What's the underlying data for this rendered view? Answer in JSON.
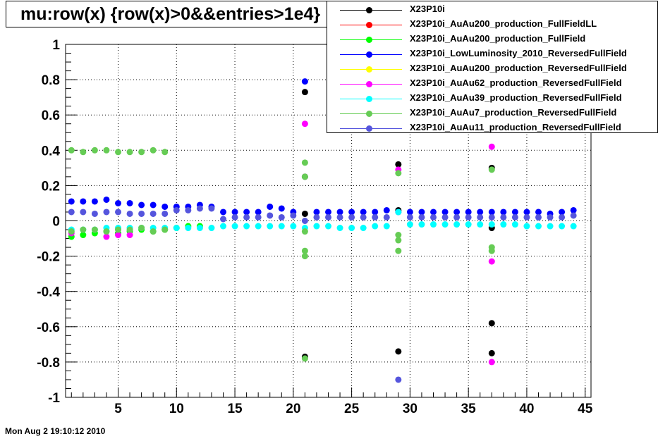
{
  "title": "mu:row(x)  {row(x)>0&&entries>1e4}",
  "timestamp": "Mon Aug  2 19:10:12 2010",
  "chart_data": {
    "type": "scatter",
    "xlim": [
      0.5,
      45.5
    ],
    "ylim": [
      -1,
      1
    ],
    "x_ticks": [
      "5",
      "10",
      "15",
      "20",
      "25",
      "30",
      "35",
      "40",
      "45"
    ],
    "y_ticks": [
      "1",
      "0.8",
      "0.6",
      "0.4",
      "0.2",
      "0",
      "-0.2",
      "-0.4",
      "-0.6",
      "-0.8",
      "-1"
    ],
    "grid": true,
    "legend_position": "top-right",
    "series": [
      {
        "name": "X23P10i",
        "color": "#000000",
        "points": [
          [
            21,
            0.73
          ],
          [
            21,
            0.25
          ],
          [
            21,
            0.04
          ],
          [
            21,
            -0.77
          ],
          [
            29,
            0.32
          ],
          [
            29,
            0.06
          ],
          [
            29,
            -0.74
          ],
          [
            37,
            0.3
          ],
          [
            37,
            -0.04
          ],
          [
            37,
            -0.58
          ],
          [
            37,
            -0.75
          ]
        ]
      },
      {
        "name": "X23P10i_AuAu200_production_FullFieldLL",
        "color": "#ff0000",
        "points": []
      },
      {
        "name": "X23P10i_AuAu200_production_FullField",
        "color": "#00ff00",
        "points": [
          [
            1,
            -0.09
          ],
          [
            2,
            -0.08
          ],
          [
            3,
            -0.07
          ],
          [
            4,
            -0.06
          ],
          [
            5,
            -0.07
          ],
          [
            6,
            -0.06
          ],
          [
            7,
            -0.05
          ],
          [
            8,
            -0.06
          ],
          [
            9,
            -0.05
          ],
          [
            10,
            -0.04
          ],
          [
            11,
            -0.03
          ],
          [
            12,
            -0.03
          ]
        ]
      },
      {
        "name": "X23P10i_LowLuminosity_2010_ReversedFullField",
        "color": "#0000ff",
        "points": [
          [
            1,
            0.11
          ],
          [
            2,
            0.11
          ],
          [
            3,
            0.11
          ],
          [
            4,
            0.12
          ],
          [
            5,
            0.1
          ],
          [
            6,
            0.1
          ],
          [
            7,
            0.09
          ],
          [
            8,
            0.09
          ],
          [
            9,
            0.08
          ],
          [
            10,
            0.08
          ],
          [
            11,
            0.08
          ],
          [
            12,
            0.09
          ],
          [
            13,
            0.08
          ],
          [
            14,
            0.05
          ],
          [
            15,
            0.05
          ],
          [
            16,
            0.05
          ],
          [
            17,
            0.05
          ],
          [
            18,
            0.08
          ],
          [
            19,
            0.07
          ],
          [
            20,
            0.05
          ],
          [
            21,
            0.79
          ],
          [
            22,
            0.05
          ],
          [
            23,
            0.05
          ],
          [
            24,
            0.05
          ],
          [
            25,
            0.05
          ],
          [
            26,
            0.05
          ],
          [
            27,
            0.05
          ],
          [
            28,
            0.06
          ],
          [
            29,
            0.05
          ],
          [
            30,
            0.05
          ],
          [
            31,
            0.05
          ],
          [
            32,
            0.05
          ],
          [
            33,
            0.05
          ],
          [
            34,
            0.05
          ],
          [
            35,
            0.05
          ],
          [
            36,
            0.05
          ],
          [
            37,
            0.05
          ],
          [
            38,
            0.05
          ],
          [
            39,
            0.05
          ],
          [
            40,
            0.05
          ],
          [
            41,
            0.05
          ],
          [
            42,
            0.04
          ],
          [
            43,
            0.05
          ],
          [
            44,
            0.06
          ]
        ]
      },
      {
        "name": "X23P10i_AuAu200_production_ReversedFullField",
        "color": "#ffff00",
        "points": []
      },
      {
        "name": "X23P10i_AuAu62_production_ReversedFullField",
        "color": "#ff00ff",
        "points": [
          [
            1,
            -0.07
          ],
          [
            4,
            -0.09
          ],
          [
            5,
            -0.08
          ],
          [
            6,
            -0.08
          ],
          [
            21,
            0.55
          ],
          [
            29,
            0.29
          ],
          [
            37,
            0.42
          ],
          [
            37,
            -0.23
          ],
          [
            37,
            -0.8
          ]
        ]
      },
      {
        "name": "X23P10i_AuAu39_production_ReversedFullField",
        "color": "#00ffff",
        "points": [
          [
            1,
            -0.05
          ],
          [
            2,
            -0.05
          ],
          [
            3,
            -0.05
          ],
          [
            4,
            -0.04
          ],
          [
            5,
            -0.04
          ],
          [
            6,
            -0.04
          ],
          [
            7,
            -0.04
          ],
          [
            8,
            -0.04
          ],
          [
            9,
            -0.04
          ],
          [
            10,
            -0.04
          ],
          [
            11,
            -0.04
          ],
          [
            12,
            -0.04
          ],
          [
            13,
            -0.04
          ],
          [
            14,
            -0.03
          ],
          [
            15,
            -0.03
          ],
          [
            16,
            -0.03
          ],
          [
            17,
            -0.03
          ],
          [
            18,
            -0.03
          ],
          [
            19,
            -0.03
          ],
          [
            20,
            -0.03
          ],
          [
            21,
            -0.04
          ],
          [
            22,
            -0.03
          ],
          [
            23,
            -0.03
          ],
          [
            24,
            -0.04
          ],
          [
            25,
            -0.04
          ],
          [
            26,
            -0.04
          ],
          [
            27,
            -0.03
          ],
          [
            28,
            -0.03
          ],
          [
            29,
            0.05
          ],
          [
            30,
            -0.02
          ],
          [
            31,
            -0.02
          ],
          [
            32,
            -0.02
          ],
          [
            33,
            -0.02
          ],
          [
            34,
            -0.02
          ],
          [
            35,
            -0.02
          ],
          [
            36,
            -0.02
          ],
          [
            37,
            -0.02
          ],
          [
            38,
            -0.02
          ],
          [
            39,
            -0.02
          ],
          [
            40,
            -0.03
          ],
          [
            41,
            -0.03
          ],
          [
            42,
            -0.03
          ],
          [
            43,
            -0.03
          ],
          [
            44,
            -0.03
          ]
        ]
      },
      {
        "name": "X23P10i_AuAu7_production_ReversedFullField",
        "color": "#66cc55",
        "points": [
          [
            1,
            0.4
          ],
          [
            2,
            0.39
          ],
          [
            3,
            0.4
          ],
          [
            4,
            0.4
          ],
          [
            5,
            0.39
          ],
          [
            6,
            0.39
          ],
          [
            7,
            0.39
          ],
          [
            8,
            0.4
          ],
          [
            9,
            0.39
          ],
          [
            1,
            -0.06
          ],
          [
            2,
            -0.05
          ],
          [
            3,
            -0.05
          ],
          [
            4,
            -0.06
          ],
          [
            5,
            -0.05
          ],
          [
            6,
            -0.05
          ],
          [
            7,
            -0.04
          ],
          [
            8,
            -0.06
          ],
          [
            9,
            -0.05
          ],
          [
            21,
            0.33
          ],
          [
            21,
            0.25
          ],
          [
            21,
            -0.06
          ],
          [
            21,
            -0.17
          ],
          [
            21,
            -0.2
          ],
          [
            21,
            -0.78
          ],
          [
            29,
            0.27
          ],
          [
            29,
            -0.08
          ],
          [
            29,
            -0.11
          ],
          [
            29,
            -0.17
          ],
          [
            37,
            0.29
          ],
          [
            37,
            -0.15
          ],
          [
            37,
            -0.17
          ]
        ]
      },
      {
        "name": "X23P10i_AuAu11_production_ReversedFullField",
        "color": "#5555dd",
        "points": [
          [
            1,
            0.05
          ],
          [
            2,
            0.05
          ],
          [
            3,
            0.04
          ],
          [
            4,
            0.05
          ],
          [
            5,
            0.05
          ],
          [
            6,
            0.04
          ],
          [
            7,
            0.04
          ],
          [
            8,
            0.04
          ],
          [
            9,
            0.04
          ],
          [
            10,
            0.06
          ],
          [
            11,
            0.06
          ],
          [
            12,
            0.07
          ],
          [
            13,
            0.07
          ],
          [
            14,
            0.01
          ],
          [
            15,
            0.02
          ],
          [
            16,
            0.02
          ],
          [
            17,
            0.02
          ],
          [
            18,
            0.03
          ],
          [
            19,
            0.02
          ],
          [
            20,
            0.03
          ],
          [
            21,
            0.0
          ],
          [
            22,
            0.02
          ],
          [
            23,
            0.02
          ],
          [
            24,
            0.02
          ],
          [
            25,
            0.02
          ],
          [
            26,
            0.02
          ],
          [
            27,
            0.02
          ],
          [
            28,
            0.02
          ],
          [
            29,
            -0.9
          ],
          [
            30,
            0.02
          ],
          [
            31,
            0.02
          ],
          [
            32,
            0.02
          ],
          [
            33,
            0.02
          ],
          [
            34,
            0.02
          ],
          [
            35,
            0.02
          ],
          [
            36,
            0.02
          ],
          [
            37,
            0.02
          ],
          [
            38,
            0.02
          ],
          [
            39,
            0.02
          ],
          [
            40,
            0.02
          ],
          [
            41,
            0.02
          ],
          [
            42,
            0.02
          ],
          [
            43,
            0.02
          ],
          [
            44,
            0.03
          ]
        ]
      }
    ]
  }
}
